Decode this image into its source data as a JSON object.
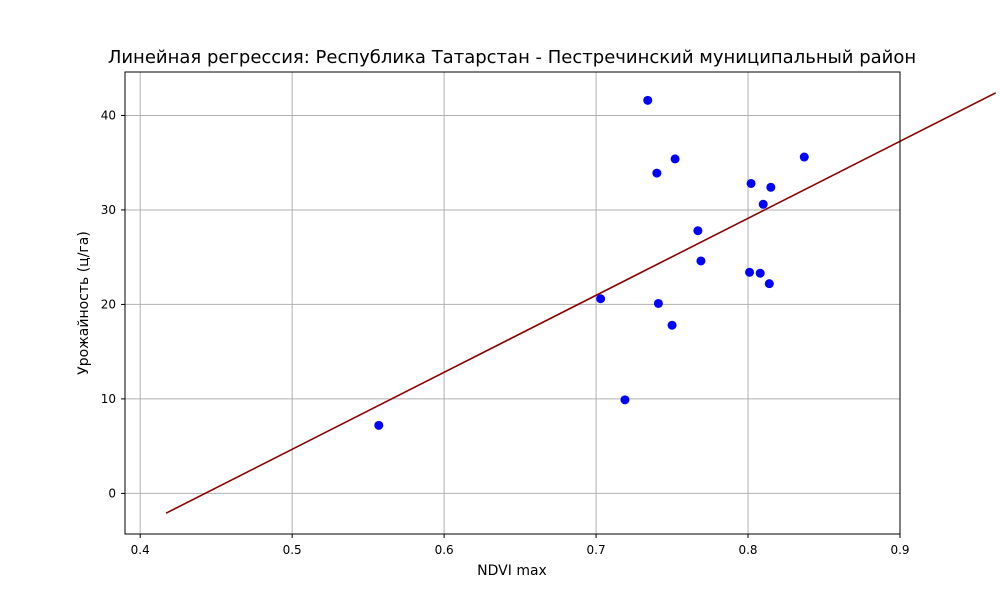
{
  "chart_data": {
    "type": "scatter",
    "title": "Линейная регрессия: Республика Татарстан - Пестречинский муниципальный район",
    "xlabel": "NDVI max",
    "ylabel": "Урожайность (ц/га)",
    "xlim": [
      0.39,
      0.9
    ],
    "ylim": [
      -4.3,
      44.6
    ],
    "x_ticks": [
      0.4,
      0.5,
      0.6,
      0.7,
      0.8,
      0.9
    ],
    "x_tick_labels": [
      "0.4",
      "0.5",
      "0.6",
      "0.7",
      "0.8",
      "0.9"
    ],
    "y_ticks": [
      0,
      10,
      20,
      30,
      40
    ],
    "y_tick_labels": [
      "0",
      "10",
      "20",
      "30",
      "40"
    ],
    "grid": true,
    "legend": "none",
    "colors": {
      "points": "#0000ff",
      "line": "#8b0000",
      "grid": "#b0b0b0",
      "axes": "#000000"
    },
    "series": [
      {
        "kind": "scatter",
        "points": [
          [
            0.557,
            7.2
          ],
          [
            0.703,
            20.6
          ],
          [
            0.719,
            9.9
          ],
          [
            0.734,
            41.6
          ],
          [
            0.74,
            33.9
          ],
          [
            0.741,
            20.1
          ],
          [
            0.75,
            17.8
          ],
          [
            0.752,
            35.4
          ],
          [
            0.767,
            27.8
          ],
          [
            0.769,
            24.6
          ],
          [
            0.801,
            23.4
          ],
          [
            0.802,
            32.8
          ],
          [
            0.808,
            23.3
          ],
          [
            0.81,
            30.6
          ],
          [
            0.814,
            22.2
          ],
          [
            0.815,
            32.4
          ],
          [
            0.837,
            35.6
          ]
        ]
      },
      {
        "kind": "line",
        "points": [
          [
            0.417,
            -2.1
          ],
          [
            0.963,
            42.4
          ]
        ]
      }
    ]
  }
}
